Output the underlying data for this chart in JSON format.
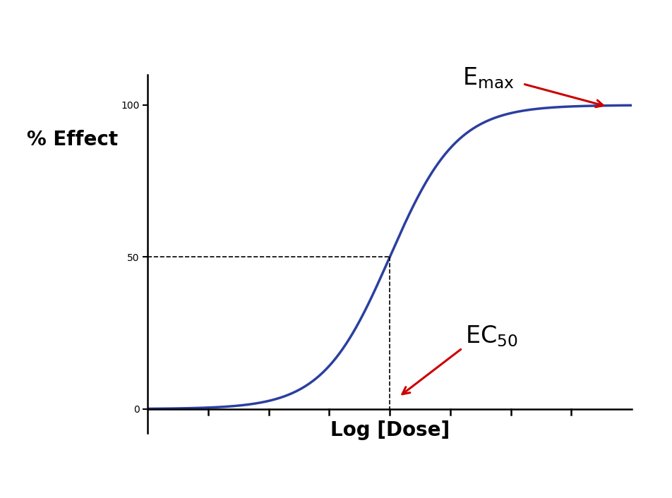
{
  "background_color": "#ffffff",
  "curve_color": "#2b3fa0",
  "curve_linewidth": 2.5,
  "x_min": -4,
  "x_max": 4,
  "emax": 100,
  "ec50_x": 0,
  "logistic_k": 1.8,
  "xlabel": "Log [Dose]",
  "ylabel": "% Effect",
  "yticks": [
    0,
    50,
    100
  ],
  "dashed_line_color": "black",
  "dashed_linewidth": 1.2,
  "annotation_color": "black",
  "arrow_color": "#cc0000",
  "axis_linewidth": 1.8,
  "xlabel_fontsize": 20,
  "ylabel_fontsize": 20,
  "tick_fontsize": 20,
  "annotation_fontsize": 22
}
